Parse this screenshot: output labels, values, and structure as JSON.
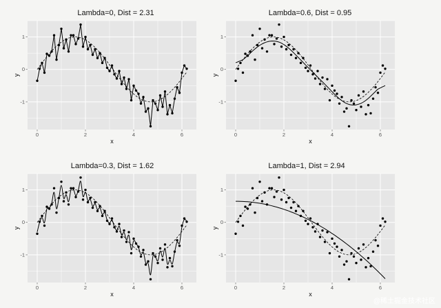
{
  "watermark": "@稀土掘金技术社区",
  "chart_data": [
    {
      "type": "scatter",
      "title": "Lambda=0, Dist = 2.31",
      "xlabel": "x",
      "ylabel": "y",
      "xlim": [
        -0.4,
        6.6
      ],
      "ylim": [
        -1.85,
        1.5
      ],
      "xticks": [
        0,
        2,
        4,
        6
      ],
      "yticks": [
        -1,
        0,
        1
      ],
      "grid": true,
      "points": [
        [
          0.0,
          -0.35
        ],
        [
          0.1,
          0.02
        ],
        [
          0.2,
          0.2
        ],
        [
          0.3,
          -0.1
        ],
        [
          0.4,
          0.48
        ],
        [
          0.5,
          0.42
        ],
        [
          0.6,
          0.55
        ],
        [
          0.7,
          1.05
        ],
        [
          0.8,
          0.3
        ],
        [
          0.9,
          0.75
        ],
        [
          1.0,
          1.25
        ],
        [
          1.1,
          0.65
        ],
        [
          1.2,
          0.92
        ],
        [
          1.3,
          0.55
        ],
        [
          1.4,
          1.05
        ],
        [
          1.5,
          1.05
        ],
        [
          1.6,
          0.78
        ],
        [
          1.7,
          0.95
        ],
        [
          1.8,
          1.38
        ],
        [
          1.9,
          0.7
        ],
        [
          2.0,
          1.0
        ],
        [
          2.1,
          0.62
        ],
        [
          2.2,
          0.75
        ],
        [
          2.3,
          0.45
        ],
        [
          2.4,
          0.62
        ],
        [
          2.5,
          0.35
        ],
        [
          2.6,
          0.5
        ],
        [
          2.7,
          0.2
        ],
        [
          2.8,
          0.35
        ],
        [
          2.9,
          0.05
        ],
        [
          3.0,
          -0.05
        ],
        [
          3.1,
          0.12
        ],
        [
          3.2,
          -0.15
        ],
        [
          3.3,
          -0.28
        ],
        [
          3.4,
          -0.05
        ],
        [
          3.5,
          -0.45
        ],
        [
          3.6,
          -0.25
        ],
        [
          3.7,
          -0.6
        ],
        [
          3.8,
          -0.3
        ],
        [
          3.9,
          -0.95
        ],
        [
          4.0,
          -0.5
        ],
        [
          4.1,
          -0.65
        ],
        [
          4.2,
          -0.75
        ],
        [
          4.3,
          -1.05
        ],
        [
          4.4,
          -0.85
        ],
        [
          4.5,
          -1.3
        ],
        [
          4.6,
          -1.2
        ],
        [
          4.7,
          -1.75
        ],
        [
          4.8,
          -0.95
        ],
        [
          4.9,
          -1.05
        ],
        [
          5.0,
          -1.25
        ],
        [
          5.1,
          -0.8
        ],
        [
          5.2,
          -1.15
        ],
        [
          5.3,
          -0.68
        ],
        [
          5.4,
          -1.38
        ],
        [
          5.5,
          -1.1
        ],
        [
          5.6,
          -1.35
        ],
        [
          5.7,
          -0.9
        ],
        [
          5.8,
          -0.55
        ],
        [
          5.9,
          -0.72
        ],
        [
          6.0,
          -0.1
        ],
        [
          6.1,
          0.12
        ],
        [
          6.2,
          0.02
        ]
      ],
      "fit": "interpolate",
      "reference": "sin(x)"
    },
    {
      "type": "scatter",
      "title": "Lambda=0.6, Dist = 0.95",
      "xlabel": "x",
      "ylabel": "y",
      "xlim": [
        -0.4,
        6.6
      ],
      "ylim": [
        -1.85,
        1.5
      ],
      "xticks": [
        0,
        2,
        4,
        6
      ],
      "yticks": [
        -1,
        0,
        1
      ],
      "grid": true,
      "points": [
        [
          0.0,
          -0.35
        ],
        [
          0.1,
          0.02
        ],
        [
          0.2,
          0.2
        ],
        [
          0.3,
          -0.1
        ],
        [
          0.4,
          0.48
        ],
        [
          0.5,
          0.42
        ],
        [
          0.6,
          0.55
        ],
        [
          0.7,
          1.05
        ],
        [
          0.8,
          0.3
        ],
        [
          0.9,
          0.75
        ],
        [
          1.0,
          1.25
        ],
        [
          1.1,
          0.65
        ],
        [
          1.2,
          0.92
        ],
        [
          1.3,
          0.55
        ],
        [
          1.4,
          1.05
        ],
        [
          1.5,
          1.05
        ],
        [
          1.6,
          0.78
        ],
        [
          1.7,
          0.95
        ],
        [
          1.8,
          1.38
        ],
        [
          1.9,
          0.7
        ],
        [
          2.0,
          1.0
        ],
        [
          2.1,
          0.62
        ],
        [
          2.2,
          0.75
        ],
        [
          2.3,
          0.45
        ],
        [
          2.4,
          0.62
        ],
        [
          2.5,
          0.35
        ],
        [
          2.6,
          0.5
        ],
        [
          2.7,
          0.2
        ],
        [
          2.8,
          0.35
        ],
        [
          2.9,
          0.05
        ],
        [
          3.0,
          -0.05
        ],
        [
          3.1,
          0.12
        ],
        [
          3.2,
          -0.15
        ],
        [
          3.3,
          -0.28
        ],
        [
          3.4,
          -0.05
        ],
        [
          3.5,
          -0.45
        ],
        [
          3.6,
          -0.25
        ],
        [
          3.7,
          -0.6
        ],
        [
          3.8,
          -0.3
        ],
        [
          3.9,
          -0.95
        ],
        [
          4.0,
          -0.5
        ],
        [
          4.1,
          -0.65
        ],
        [
          4.2,
          -0.75
        ],
        [
          4.3,
          -1.05
        ],
        [
          4.4,
          -0.85
        ],
        [
          4.5,
          -1.3
        ],
        [
          4.6,
          -1.2
        ],
        [
          4.7,
          -1.75
        ],
        [
          4.8,
          -0.95
        ],
        [
          4.9,
          -1.05
        ],
        [
          5.0,
          -1.25
        ],
        [
          5.1,
          -0.8
        ],
        [
          5.2,
          -1.15
        ],
        [
          5.3,
          -0.68
        ],
        [
          5.4,
          -1.38
        ],
        [
          5.5,
          -1.1
        ],
        [
          5.6,
          -1.35
        ],
        [
          5.7,
          -0.9
        ],
        [
          5.8,
          -0.55
        ],
        [
          5.9,
          -0.72
        ],
        [
          6.0,
          -0.1
        ],
        [
          6.1,
          0.12
        ],
        [
          6.2,
          0.02
        ]
      ],
      "fit": "smooth",
      "reference": "sin(x)"
    },
    {
      "type": "scatter",
      "title": "Lambda=0.3, Dist = 1.62",
      "xlabel": "x",
      "ylabel": "y",
      "xlim": [
        -0.4,
        6.6
      ],
      "ylim": [
        -1.85,
        1.5
      ],
      "xticks": [
        0,
        2,
        4,
        6
      ],
      "yticks": [
        -1,
        0,
        1
      ],
      "grid": true,
      "points": [
        [
          0.0,
          -0.35
        ],
        [
          0.1,
          0.02
        ],
        [
          0.2,
          0.2
        ],
        [
          0.3,
          -0.1
        ],
        [
          0.4,
          0.48
        ],
        [
          0.5,
          0.42
        ],
        [
          0.6,
          0.55
        ],
        [
          0.7,
          1.05
        ],
        [
          0.8,
          0.3
        ],
        [
          0.9,
          0.75
        ],
        [
          1.0,
          1.25
        ],
        [
          1.1,
          0.65
        ],
        [
          1.2,
          0.92
        ],
        [
          1.3,
          0.55
        ],
        [
          1.4,
          1.05
        ],
        [
          1.5,
          1.05
        ],
        [
          1.6,
          0.78
        ],
        [
          1.7,
          0.95
        ],
        [
          1.8,
          1.38
        ],
        [
          1.9,
          0.7
        ],
        [
          2.0,
          1.0
        ],
        [
          2.1,
          0.62
        ],
        [
          2.2,
          0.75
        ],
        [
          2.3,
          0.45
        ],
        [
          2.4,
          0.62
        ],
        [
          2.5,
          0.35
        ],
        [
          2.6,
          0.5
        ],
        [
          2.7,
          0.2
        ],
        [
          2.8,
          0.35
        ],
        [
          2.9,
          0.05
        ],
        [
          3.0,
          -0.05
        ],
        [
          3.1,
          0.12
        ],
        [
          3.2,
          -0.15
        ],
        [
          3.3,
          -0.28
        ],
        [
          3.4,
          -0.05
        ],
        [
          3.5,
          -0.45
        ],
        [
          3.6,
          -0.25
        ],
        [
          3.7,
          -0.6
        ],
        [
          3.8,
          -0.3
        ],
        [
          3.9,
          -0.95
        ],
        [
          4.0,
          -0.5
        ],
        [
          4.1,
          -0.65
        ],
        [
          4.2,
          -0.75
        ],
        [
          4.3,
          -1.05
        ],
        [
          4.4,
          -0.85
        ],
        [
          4.5,
          -1.3
        ],
        [
          4.6,
          -1.2
        ],
        [
          4.7,
          -1.75
        ],
        [
          4.8,
          -0.95
        ],
        [
          4.9,
          -1.05
        ],
        [
          5.0,
          -1.25
        ],
        [
          5.1,
          -0.8
        ],
        [
          5.2,
          -1.15
        ],
        [
          5.3,
          -0.68
        ],
        [
          5.4,
          -1.38
        ],
        [
          5.5,
          -1.1
        ],
        [
          5.6,
          -1.35
        ],
        [
          5.7,
          -0.9
        ],
        [
          5.8,
          -0.55
        ],
        [
          5.9,
          -0.72
        ],
        [
          6.0,
          -0.1
        ],
        [
          6.1,
          0.12
        ],
        [
          6.2,
          0.02
        ]
      ],
      "fit": "spline",
      "reference": "sin(x)"
    },
    {
      "type": "scatter",
      "title": "Lambda=1, Dist = 2.94",
      "xlabel": "x",
      "ylabel": "y",
      "xlim": [
        -0.4,
        6.6
      ],
      "ylim": [
        -1.85,
        1.5
      ],
      "xticks": [
        0,
        2,
        4,
        6
      ],
      "yticks": [
        -1,
        0,
        1
      ],
      "grid": true,
      "points": [
        [
          0.0,
          -0.35
        ],
        [
          0.1,
          0.02
        ],
        [
          0.2,
          0.2
        ],
        [
          0.3,
          -0.1
        ],
        [
          0.4,
          0.48
        ],
        [
          0.5,
          0.42
        ],
        [
          0.6,
          0.55
        ],
        [
          0.7,
          1.05
        ],
        [
          0.8,
          0.3
        ],
        [
          0.9,
          0.75
        ],
        [
          1.0,
          1.25
        ],
        [
          1.1,
          0.65
        ],
        [
          1.2,
          0.92
        ],
        [
          1.3,
          0.55
        ],
        [
          1.4,
          1.05
        ],
        [
          1.5,
          1.05
        ],
        [
          1.6,
          0.78
        ],
        [
          1.7,
          0.95
        ],
        [
          1.8,
          1.38
        ],
        [
          1.9,
          0.7
        ],
        [
          2.0,
          1.0
        ],
        [
          2.1,
          0.62
        ],
        [
          2.2,
          0.75
        ],
        [
          2.3,
          0.45
        ],
        [
          2.4,
          0.62
        ],
        [
          2.5,
          0.35
        ],
        [
          2.6,
          0.5
        ],
        [
          2.7,
          0.2
        ],
        [
          2.8,
          0.35
        ],
        [
          2.9,
          0.05
        ],
        [
          3.0,
          -0.05
        ],
        [
          3.1,
          0.12
        ],
        [
          3.2,
          -0.15
        ],
        [
          3.3,
          -0.28
        ],
        [
          3.4,
          -0.05
        ],
        [
          3.5,
          -0.45
        ],
        [
          3.6,
          -0.25
        ],
        [
          3.7,
          -0.6
        ],
        [
          3.8,
          -0.3
        ],
        [
          3.9,
          -0.95
        ],
        [
          4.0,
          -0.5
        ],
        [
          4.1,
          -0.65
        ],
        [
          4.2,
          -0.75
        ],
        [
          4.3,
          -1.05
        ],
        [
          4.4,
          -0.85
        ],
        [
          4.5,
          -1.3
        ],
        [
          4.6,
          -1.2
        ],
        [
          4.7,
          -1.75
        ],
        [
          4.8,
          -0.95
        ],
        [
          4.9,
          -1.05
        ],
        [
          5.0,
          -1.25
        ],
        [
          5.1,
          -0.8
        ],
        [
          5.2,
          -1.15
        ],
        [
          5.3,
          -0.68
        ],
        [
          5.4,
          -1.38
        ],
        [
          5.5,
          -1.1
        ],
        [
          5.6,
          -1.35
        ],
        [
          5.7,
          -0.9
        ],
        [
          5.8,
          -0.55
        ],
        [
          5.9,
          -0.72
        ],
        [
          6.0,
          -0.1
        ],
        [
          6.1,
          0.12
        ],
        [
          6.2,
          0.02
        ]
      ],
      "fit": "cubic",
      "fit_coefficients": [
        0.65,
        0.0,
        -0.062,
        0.0
      ],
      "reference": "sin(x)"
    }
  ],
  "colors": {
    "panel_bg": "#e6e6e6",
    "grid": "#ffffff",
    "points": "#000000",
    "lines": "#000000",
    "ticks": "#555555"
  }
}
